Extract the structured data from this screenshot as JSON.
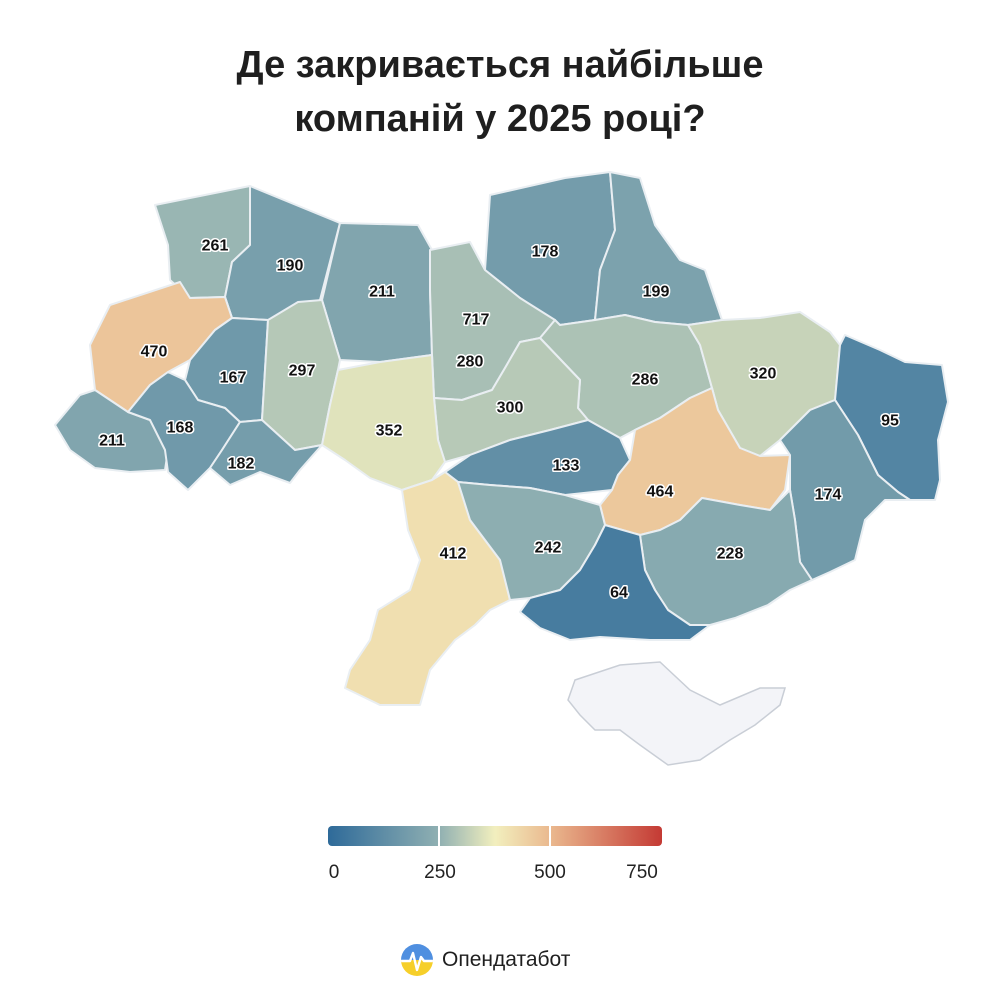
{
  "title": {
    "line1": "Де закривається найбільше",
    "line2": "компаній у 2025 році?"
  },
  "map_data": {
    "type": "choropleth",
    "region_values": [
      {
        "value": 261
      },
      {
        "value": 190
      },
      {
        "value": 211
      },
      {
        "value": 178
      },
      {
        "value": 199
      },
      {
        "value": 717
      },
      {
        "value": 470
      },
      {
        "value": 167
      },
      {
        "value": 297
      },
      {
        "value": 280
      },
      {
        "value": 286
      },
      {
        "value": 320
      },
      {
        "value": 95
      },
      {
        "value": 211
      },
      {
        "value": 168
      },
      {
        "value": 300
      },
      {
        "value": 352
      },
      {
        "value": 182
      },
      {
        "value": 133
      },
      {
        "value": 464
      },
      {
        "value": 174
      },
      {
        "value": 412
      },
      {
        "value": 242
      },
      {
        "value": 228
      },
      {
        "value": 64
      }
    ],
    "scale": {
      "min": 0,
      "max": 750
    },
    "colors": {
      "low": "#2e6a99",
      "mid_low": "#90b0b2",
      "mid": "#f2efbe",
      "mid_high": "#eab88e",
      "high": "#c43a34",
      "no_data": "#f3f4f8"
    }
  },
  "legend": {
    "ticks": [
      "0",
      "250",
      "500",
      "750"
    ]
  },
  "brand": {
    "name": "Опендатабот",
    "logo": "opendatabot-logo-icon"
  }
}
